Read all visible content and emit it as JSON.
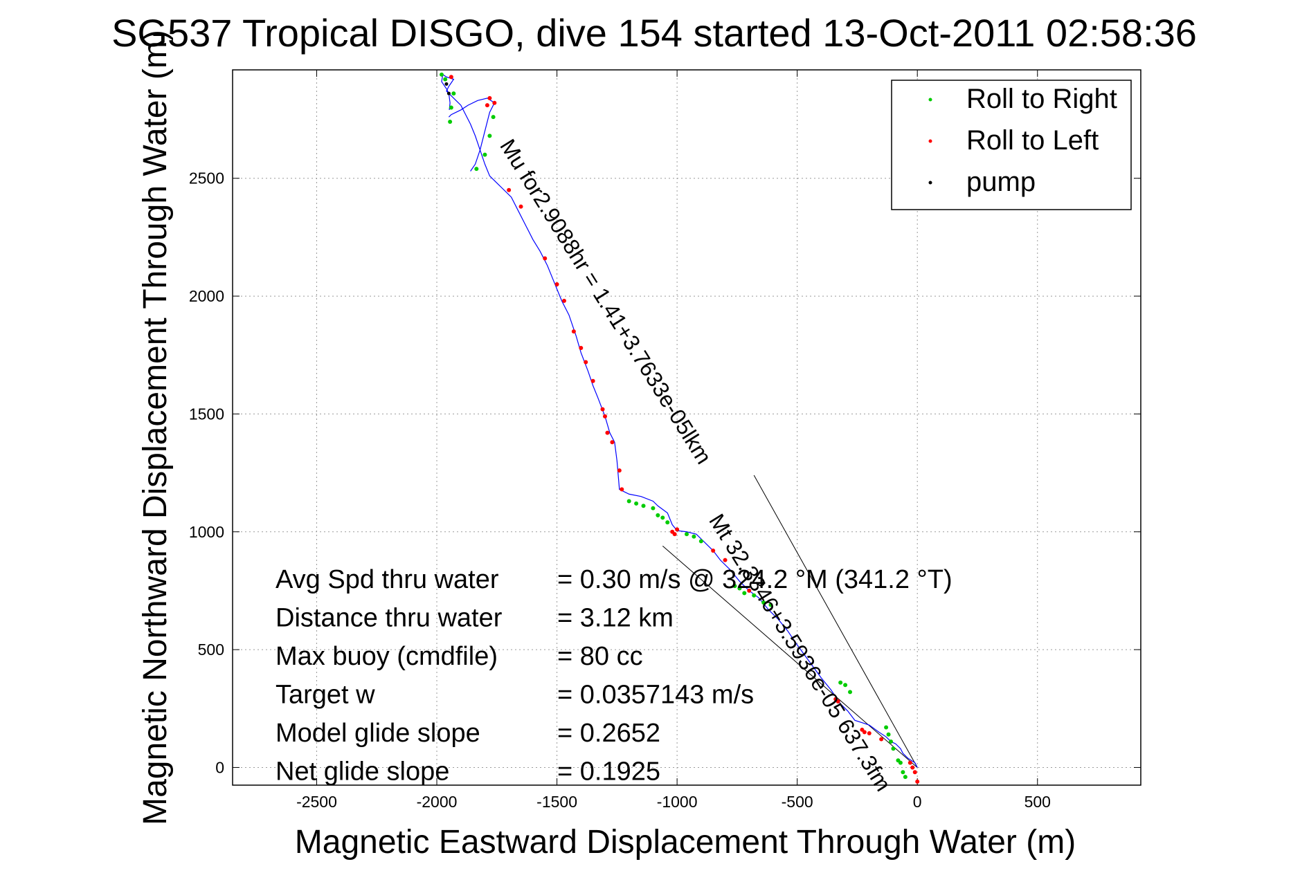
{
  "chart_data": {
    "type": "line",
    "title": "SG537 Tropical DISGO, dive 154 started 13-Oct-2011 02:58:36",
    "xlabel": "Magnetic Eastward Displacement Through Water (m)",
    "ylabel": "Magnetic Northward Displacement Through Water (m)",
    "xlim": [
      -2850,
      930
    ],
    "ylim": [
      -75,
      2960
    ],
    "xticks": [
      -2500,
      -2000,
      -1500,
      -1000,
      -500,
      0,
      500
    ],
    "yticks": [
      0,
      500,
      1000,
      1500,
      2000,
      2500
    ],
    "grid": true,
    "legend_position": "top-right",
    "legend": [
      {
        "label": "Roll to Right",
        "color": "#00cc00"
      },
      {
        "label": "Roll to Left",
        "color": "#ff0000"
      },
      {
        "label": "pump",
        "color": "#000000"
      }
    ],
    "colors": {
      "track": "#0000ff",
      "roll_right": "#00cc00",
      "roll_left": "#ff0000",
      "pump": "#000000"
    },
    "track": {
      "x": [
        0,
        -10,
        -40,
        -60,
        -70,
        -90,
        -110,
        -130,
        -160,
        -200,
        -230,
        -260,
        -290,
        -320,
        -360,
        -400,
        -450,
        -500,
        -540,
        -580,
        -620,
        -660,
        -700,
        -740,
        -780,
        -820,
        -850,
        -880,
        -920,
        -960,
        -1000,
        -1020,
        -1040,
        -1080,
        -1100,
        -1150,
        -1200,
        -1240,
        -1250,
        -1260,
        -1280,
        -1300,
        -1330,
        -1350,
        -1370,
        -1400,
        -1420,
        -1450,
        -1480,
        -1500,
        -1520,
        -1540,
        -1570,
        -1600,
        -1630,
        -1660,
        -1690,
        -1720,
        -1750,
        -1780,
        -1800,
        -1820,
        -1840,
        -1860,
        -1880,
        -1900,
        -1920,
        -1940,
        -1960,
        -1950,
        -1940,
        -1930,
        -1960,
        -1975,
        -1980,
        -1960,
        -1950,
        -1945,
        -1948
      ],
      "y": [
        0,
        20,
        40,
        60,
        80,
        100,
        110,
        130,
        150,
        180,
        190,
        200,
        240,
        270,
        330,
        380,
        450,
        520,
        580,
        630,
        670,
        720,
        750,
        790,
        840,
        880,
        920,
        950,
        990,
        1000,
        1005,
        1030,
        1080,
        1110,
        1130,
        1150,
        1160,
        1180,
        1300,
        1380,
        1420,
        1490,
        1570,
        1620,
        1680,
        1760,
        1830,
        1920,
        1980,
        2030,
        2080,
        2130,
        2190,
        2240,
        2300,
        2360,
        2420,
        2450,
        2480,
        2510,
        2560,
        2620,
        2680,
        2730,
        2770,
        2810,
        2830,
        2850,
        2870,
        2890,
        2905,
        2920,
        2930,
        2940,
        2910,
        2880,
        2860,
        2820,
        2790
      ]
    },
    "loop_track": {
      "x": [
        -1860,
        -1840,
        -1820,
        -1800,
        -1780,
        -1760,
        -1790,
        -1830,
        -1870,
        -1900,
        -1920,
        -1940,
        -1950
      ],
      "y": [
        2530,
        2560,
        2620,
        2700,
        2780,
        2820,
        2840,
        2830,
        2810,
        2790,
        2780,
        2770,
        2760
      ]
    },
    "roll_right_points": {
      "x": [
        -1835,
        -1800,
        -1780,
        -1765,
        -1945,
        -1940,
        -1930,
        -1965,
        -1980,
        -1200,
        -1170,
        -1140,
        -1100,
        -1080,
        -1060,
        -1040,
        -960,
        -930,
        -900,
        -760,
        -740,
        -720,
        -680,
        -640,
        -610,
        -320,
        -300,
        -280,
        -130,
        -120,
        -110,
        -100,
        -80,
        -70,
        -60,
        -50
      ],
      "y": [
        2540,
        2600,
        2680,
        2760,
        2740,
        2800,
        2860,
        2920,
        2940,
        1130,
        1120,
        1110,
        1100,
        1070,
        1060,
        1040,
        990,
        980,
        960,
        770,
        760,
        740,
        730,
        700,
        690,
        360,
        350,
        320,
        170,
        140,
        110,
        80,
        30,
        20,
        -20,
        -40
      ]
    },
    "roll_left_points": {
      "x": [
        -1940,
        -1760,
        -1780,
        -1790,
        -1700,
        -1650,
        -1550,
        -1500,
        -1470,
        -1430,
        -1400,
        -1380,
        -1350,
        -1310,
        -1300,
        -1290,
        -1270,
        -1240,
        -1230,
        -1020,
        -1010,
        -1000,
        -850,
        -800,
        -700,
        -340,
        -330,
        -230,
        -220,
        -200,
        -150,
        -30,
        -20,
        -10,
        0
      ],
      "y": [
        2930,
        2820,
        2840,
        2810,
        2450,
        2380,
        2160,
        2050,
        1980,
        1850,
        1780,
        1720,
        1640,
        1520,
        1490,
        1420,
        1380,
        1260,
        1180,
        1000,
        990,
        1010,
        920,
        880,
        750,
        290,
        280,
        160,
        150,
        145,
        120,
        20,
        0,
        -20,
        -60
      ]
    },
    "pump_points": {
      "x": [
        -1960,
        -1950
      ],
      "y": [
        2900,
        2860
      ]
    },
    "reference_lines": [
      {
        "x": [
          0,
          -680
        ],
        "y": [
          0,
          1240
        ]
      },
      {
        "x": [
          0,
          -1060
        ],
        "y": [
          0,
          940
        ]
      }
    ],
    "annotations": [
      {
        "text": "Mu for2.9088hr = 1.41+3.7633e-05lkm",
        "x": -1740,
        "y": 2640,
        "angle": 58
      },
      {
        "text": "Mt 32.3346+3.5936e-05 637.3fm",
        "x": -870,
        "y": 1050,
        "angle": 58
      }
    ],
    "stats": [
      {
        "label": "Avg Spd thru water",
        "value": "=  0.30 m/s @  324.2 °M (341.2 °T)"
      },
      {
        "label": "Distance thru water",
        "value": "=  3.12 km"
      },
      {
        "label": "Max buoy (cmdfile)",
        "value": "= 80 cc"
      },
      {
        "label": "Target w",
        "value": "= 0.0357143 m/s"
      },
      {
        "label": "Model glide slope",
        "value": "= 0.2652"
      },
      {
        "label": "Net glide slope",
        "value": "= 0.1925"
      }
    ]
  }
}
